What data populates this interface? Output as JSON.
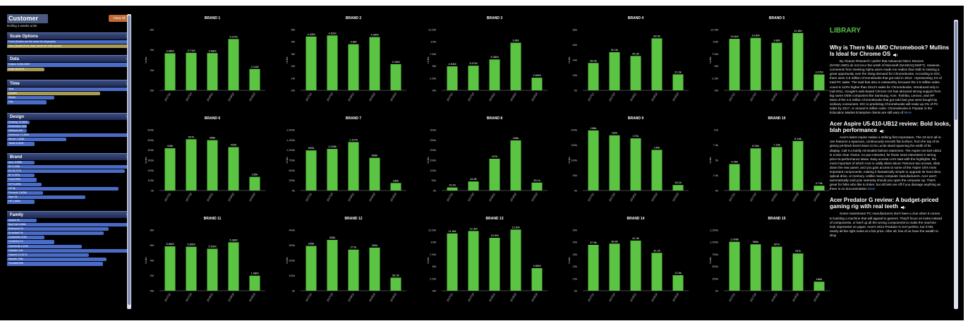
{
  "sidebar": {
    "title": "Customer",
    "subtitle": "Rolling 4 weeks units",
    "clear_all": "Clear All",
    "sections": [
      {
        "title": "Scale Options",
        "options": [
          {
            "label": "Fixed (Scales are the same for all graphs)",
            "fill": 1.0,
            "style": "blue"
          },
          {
            "label": "Auto (Scales fit the data values for each graph)",
            "fill": 1.0,
            "style": "gold"
          }
        ]
      },
      {
        "title": "Data",
        "options": [
          {
            "label": "Dollars 5,668,282K",
            "fill": 1.0,
            "style": "blue"
          },
          {
            "label": "Units 38,821K",
            "fill": 0.3,
            "style": "gold"
          }
        ]
      },
      {
        "title": "Time",
        "options": [
          {
            "label": "Year",
            "fill": 1.0,
            "style": "blue"
          },
          {
            "label": "Quarter",
            "fill": 0.75,
            "style": "gold"
          },
          {
            "label": "Month",
            "fill": 0.38,
            "style": "blue"
          },
          {
            "label": "Day",
            "fill": 0.32,
            "style": "blue"
          }
        ]
      },
      {
        "title": "Design",
        "options": [
          {
            "label": "Desktop 12,083k",
            "fill": 0.18,
            "style": "blue"
          },
          {
            "label": "Embedded 145k",
            "fill": 0.16,
            "style": "blue"
          },
          {
            "label": "Netbook 84k",
            "fill": 0.16,
            "style": "blue"
          },
          {
            "label": "Notebook 17,853k",
            "fill": 1.0,
            "style": "blue"
          },
          {
            "label": "Server 1,835k",
            "fill": 0.48,
            "style": "blue"
          },
          {
            "label": "Tablet 6,542k",
            "fill": 0.22,
            "style": "blue"
          }
        ]
      },
      {
        "title": "Brand",
        "options": [
          {
            "label": "Acer 4,598k",
            "fill": 0.22,
            "style": "blue"
          },
          {
            "label": "B2 5,198k",
            "fill": 1.0,
            "style": "blue"
          },
          {
            "label": "B3 18,727k",
            "fill": 0.95,
            "style": "blue"
          },
          {
            "label": "B7 3,787k",
            "fill": 0.22,
            "style": "blue"
          },
          {
            "label": "Cons 393k",
            "fill": 0.24,
            "style": "blue"
          },
          {
            "label": "ICP 8,959k",
            "fill": 0.28,
            "style": "blue"
          },
          {
            "label": "HP 6k",
            "fill": 0.9,
            "style": "blue"
          },
          {
            "label": "Pinnacle 3,826k",
            "fill": 0.29,
            "style": "blue"
          },
          {
            "label": "Sanr 0k",
            "fill": 0.63,
            "style": "blue"
          },
          {
            "label": "HP 1,960k",
            "fill": 0.22,
            "style": "blue"
          }
        ]
      },
      {
        "title": "Family",
        "options": [
          {
            "label": "Avalon 0k",
            "fill": 0.24,
            "style": "blue"
          },
          {
            "label": "BayTrail 6,656k",
            "fill": 1.0,
            "style": "blue"
          },
          {
            "label": "Briarwood 0k",
            "fill": 0.82,
            "style": "blue"
          },
          {
            "label": "Broadwell 0k",
            "fill": 0.78,
            "style": "blue"
          },
          {
            "label": "Cedarview 210k",
            "fill": 0.3,
            "style": "blue"
          },
          {
            "label": "Centerton 1k",
            "fill": 0.38,
            "style": "blue"
          },
          {
            "label": "Clovertrail 2,424k",
            "fill": 0.6,
            "style": "blue"
          },
          {
            "label": "Gladden 16k",
            "fill": 1.0,
            "style": "blue"
          },
          {
            "label": "Haswell 10,617k",
            "fill": 0.66,
            "style": "blue"
          },
          {
            "label": "Marathi 156k",
            "fill": 0.8,
            "style": "blue"
          },
          {
            "label": "Plowfield 89k",
            "fill": 0.77,
            "style": "blue"
          }
        ]
      }
    ]
  },
  "colors": {
    "bar": "#5cc443",
    "axis": "#888888",
    "text": "#ffffff",
    "accent": "#c06b36",
    "library": "#58c048"
  },
  "chart_data": [
    {
      "type": "bar",
      "title": "BRAND 1",
      "categories": [
        "2017Q1",
        "2017Q4",
        "2018Q1",
        "2018Q2",
        "2018Q3"
      ],
      "values": [
        3.66,
        3.71,
        3.68,
        5.07,
        2.11
      ],
      "labels": [
        "3.66M",
        "3.71M",
        "3.68M",
        "5.07M",
        "2.11M"
      ],
      "yticks": [
        "0M",
        "2M",
        "4M",
        "6M"
      ],
      "ylim": [
        0,
        6
      ],
      "ylabel": "Units"
    },
    {
      "type": "bar",
      "title": "BRAND 2",
      "categories": [
        "2017Q1",
        "2017Q4",
        "2018Q1",
        "2018Q2",
        "2018Q3"
      ],
      "values": [
        4.43,
        4.52,
        3.8,
        4.39,
        2.16
      ],
      "labels": [
        "4.43M",
        "4.52M",
        "3.8M",
        "4.39M",
        "2.16M"
      ],
      "yticks": [
        "0M",
        "1M",
        "2M",
        "3M",
        "4M",
        "5M"
      ],
      "ylim": [
        0,
        5
      ],
      "ylabel": "Units"
    },
    {
      "type": "bar",
      "title": "BRAND 3",
      "categories": [
        "2017Q1",
        "2017Q4",
        "2018Q1",
        "2018Q2",
        "2018Q3"
      ],
      "values": [
        4.94,
        5.07,
        6.36,
        9.8,
        2.6
      ],
      "labels": [
        "4.94M",
        "5.07M",
        "6.36M",
        "9.8M",
        "2.60M"
      ],
      "yticks": [
        "0M",
        "2.5M",
        "5M",
        "7.5M",
        "10M",
        "12.5M"
      ],
      "ylim": [
        0,
        12.5
      ],
      "ylabel": "Units"
    },
    {
      "type": "bar",
      "title": "BRAND 4",
      "categories": [
        "2017Q1",
        "2017Q4",
        "2018Q1",
        "2018Q2",
        "2018Q3"
      ],
      "values": [
        36.0,
        50.3,
        45.3,
        68.5,
        21.0
      ],
      "labels": [
        "36.0k",
        "50.3k",
        "45.3k",
        "68.5k",
        "21.0k"
      ],
      "yticks": [
        "0k",
        "20k",
        "40k",
        "60k",
        "80k"
      ],
      "ylim": [
        0,
        80
      ],
      "ylabel": "Units"
    },
    {
      "type": "bar",
      "title": "BRAND 5",
      "categories": [
        "2017Q1",
        "2017Q4",
        "2018Q1",
        "2018Q2",
        "2018Q3"
      ],
      "values": [
        10.6,
        10.8,
        9.8,
        11.8,
        3.27
      ],
      "labels": [
        "10.6M",
        "10.8M",
        "9.8M",
        "11.8M",
        "3.27M"
      ],
      "yticks": [
        "0M",
        "2.5M",
        "5M",
        "7.5M",
        "10M",
        "12.5M"
      ],
      "ylim": [
        0,
        12.5
      ],
      "ylabel": "Units"
    },
    {
      "type": "bar",
      "title": "BRAND 6",
      "categories": [
        "2017Q1",
        "2017Q4",
        "2018Q1",
        "2018Q2",
        "2018Q3"
      ],
      "values": [
        418,
        507,
        498,
        429,
        135
      ],
      "labels": [
        "418k",
        "507k",
        "498k",
        "429k",
        "135k"
      ],
      "yticks": [
        "0k",
        "100k",
        "200k",
        "300k",
        "400k",
        "500k",
        "600k"
      ],
      "ylim": [
        0,
        600
      ],
      "ylabel": "Units"
    },
    {
      "type": "bar",
      "title": "BRAND 7",
      "categories": [
        "2017Q1",
        "2017Q4",
        "2018Q1",
        "2018Q2",
        "2018Q3"
      ],
      "values": [
        992,
        1028,
        1197,
        808,
        186
      ],
      "labels": [
        "992k",
        "1,028k",
        "1,197k",
        "808k",
        "186k"
      ],
      "yticks": [
        "0k",
        "250k",
        "500k",
        "750k",
        "1,000k",
        "1,250k",
        "1,500k"
      ],
      "ylim": [
        0,
        1500
      ],
      "ylabel": "Units"
    },
    {
      "type": "bar",
      "title": "BRAND 8",
      "categories": [
        "2017Q1",
        "2017Q4",
        "2018Q1",
        "2018Q2",
        "2018Q3"
      ],
      "values": [
        15.2,
        44.8,
        157,
        248,
        39.1
      ],
      "labels": [
        "15.2k",
        "44.8k",
        "157k",
        "248k",
        "39.1k"
      ],
      "yticks": [
        "0k",
        "50k",
        "100k",
        "150k",
        "200k",
        "250k",
        "300k"
      ],
      "ylim": [
        0,
        300
      ],
      "ylabel": "Units"
    },
    {
      "type": "bar",
      "title": "BRAND 9",
      "categories": [
        "2017Q1",
        "2017Q4",
        "2018Q1",
        "2018Q2",
        "2018Q3"
      ],
      "values": [
        198,
        182,
        172,
        134,
        18.2
      ],
      "labels": [
        "198k",
        "182k",
        "172k",
        "134k",
        "18.2k"
      ],
      "yticks": [
        "0k",
        "50k",
        "100k",
        "150k",
        "200k"
      ],
      "ylim": [
        0,
        200
      ],
      "ylabel": "Units"
    },
    {
      "type": "bar",
      "title": "BRAND 10",
      "categories": [
        "2017Q1",
        "2017Q4",
        "2018Q1",
        "2018Q2",
        "2018Q3"
      ],
      "values": [
        4.36,
        6.95,
        7.16,
        8.16,
        0.79
      ],
      "labels": [
        "4.36k",
        "6.95k",
        "7.16k",
        "8.16k",
        "0.79k"
      ],
      "yticks": [
        "0k",
        "2.5k",
        "5k",
        "7.5k",
        "10k"
      ],
      "ylim": [
        0,
        10
      ],
      "ylabel": "Units"
    },
    {
      "type": "bar",
      "title": "BRAND 11",
      "categories": [
        "2017Q1",
        "2017Q4",
        "2018Q1",
        "2018Q2",
        "2018Q3"
      ],
      "values": [
        5.85,
        5.8,
        5.53,
        6.38,
        1.98
      ],
      "labels": [
        "5.85M",
        "5.80M",
        "5.53M",
        "6.38M",
        "1.98M"
      ],
      "yticks": [
        "0M",
        "2M",
        "4M",
        "6M",
        "8M"
      ],
      "ylim": [
        0,
        8
      ],
      "ylabel": "Units"
    },
    {
      "type": "bar",
      "title": "BRAND 12",
      "categories": [
        "2017Q1",
        "2017Q4",
        "2018Q1",
        "2018Q2",
        "2018Q3"
      ],
      "values": [
        295,
        335,
        271,
        284,
        86.3
      ],
      "labels": [
        "295k",
        "335k",
        "271k",
        "284k",
        "86.3k"
      ],
      "yticks": [
        "0k",
        "100k",
        "200k",
        "300k",
        "400k"
      ],
      "ylim": [
        0,
        400
      ],
      "ylabel": "Units"
    },
    {
      "type": "bar",
      "title": "BRAND 13",
      "categories": [
        "2017Q1",
        "2017Q4",
        "2018Q1",
        "2018Q2",
        "2018Q3"
      ],
      "values": [
        11.8,
        12.3,
        10.9,
        12.6,
        4.65
      ],
      "labels": [
        "11.8M",
        "12.3M",
        "10.9M",
        "12.6M",
        "4.65M"
      ],
      "yticks": [
        "0M",
        "2.5M",
        "5M",
        "7.5M",
        "10M",
        "12.5M"
      ],
      "ylim": [
        0,
        12.5
      ],
      "ylabel": "Units"
    },
    {
      "type": "bar",
      "title": "BRAND 14",
      "categories": [
        "2017Q1",
        "2017Q4",
        "2018Q1",
        "2018Q2",
        "2018Q3"
      ],
      "values": [
        37.8,
        38.8,
        41.3,
        31.2,
        12.8
      ],
      "labels": [
        "37.8k",
        "38.8k",
        "41.3k",
        "31.2k",
        "12.8k"
      ],
      "yticks": [
        "0k",
        "10k",
        "20k",
        "30k",
        "40k",
        "50k"
      ],
      "ylim": [
        0,
        50
      ],
      "ylabel": "Units"
    },
    {
      "type": "bar",
      "title": "BRAND 15",
      "categories": [
        "2017Q1",
        "2017Q4",
        "2018Q1",
        "2018Q2",
        "2018Q3"
      ],
      "values": [
        1008,
        956,
        907,
        767,
        186
      ],
      "labels": [
        "1,008k",
        "956k",
        "907k",
        "767k",
        "186k"
      ],
      "yticks": [
        "0k",
        "250k",
        "500k",
        "750k",
        "1,000k",
        "1,250k"
      ],
      "ylim": [
        0,
        1250
      ],
      "ylabel": "Units"
    }
  ],
  "library": {
    "title": "LIBRARY",
    "articles": [
      {
        "title": "Why is There No AMD Chromebook? Mullins Is Ideal for Chrome OS",
        "body": "By Alcaraz Research I prefer that Advanced Micro Devices (NYSE:AMD) do not incur the wrath of Microsoft (NASDAQ:MSFT). However, comments from Seeking Alpha users made me realize that AMD is missing a great opportunity over the rising demand for Chromebooks. According to IDC, there were 2.5 million Chromebooks that got sold in 2013 - representing 1% of total PC sales. The said feat also is noteworthy because the 2.5 million sales count is 112% higher than 2012's sales for Chromebooks. Introduced only in mid-2011, Google's web-based Chrome OS has attracted strong support from big name OEM companies like Samsung, Acer, Toshiba, Lenovo, and HP. Most of the 2.5 million Chromebooks that got sold last year were bought by ordinary consumers. IDC is predicting Chromebooks will make up 2% of PC sales by 2017, or around 6 million units. Chromebooks is Popular in the Education Market Enterprise clients are still wary of",
        "more": "More"
      },
      {
        "title": "Acer Aspire U5-610-UB12 review: Bold looks, blah performance",
        "body": "Acer's latest Aspire makes a striking first impression. The 23-inch all-in-one features a spacious, continuously smooth flat surface, from the top of its glossy jet-black bezel down to its Lucite stand spanning the width of its display. Call it a boldly minimalist fashion statement. The Aspire U5-610-UB12 is a less clear choice, no pun intended, for those more interested in strong price-to-performance ideas. Easy access Let's start with the highlights, the most important of which Acer is oddly silent about: Remove two screws, slide down the rear panel, and you gain access to some of the Aspire U5's most important components, making it fantastically simple to upgrade its hard drive, optical drive, or memory. Unlike many computer manufacturers, Acer won't automatically void your warranty should you open the computer up. That's great for folks who like to tinker, but all bets are off if you damage anything as there is no documentation",
        "more": "More"
      },
      {
        "title": "Acer Predator G review: A budget-priced gaming rig with real teeth",
        "body": "Some mainstream PC manufacturers don't have a clue when it comes to building a machine that will appeal to gamers. They'll focus on looks instead of components, or beef up all the wrong components to make the machine look impressive on paper. Acer's 2014 Predator G isn't perfect, but it hits nearly all the right notes at a fair price. After all, few of us have the wealth to drop",
        "more": ""
      }
    ]
  }
}
